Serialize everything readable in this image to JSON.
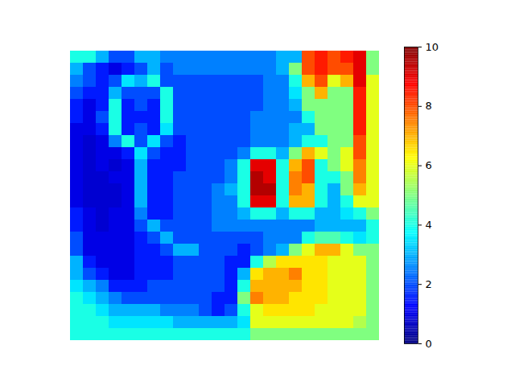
{
  "chart_data": {
    "type": "heatmap",
    "color": "jet",
    "tick_labels": false,
    "colorbar": {
      "range": [
        0,
        10
      ],
      "ticks": [
        0,
        2,
        4,
        6,
        8,
        10
      ]
    },
    "cells": [
      [
        4,
        4,
        3,
        2,
        2,
        3,
        3,
        2.5,
        2.5,
        2.5,
        2.5,
        2.5,
        2.5,
        2.5,
        2.5,
        2.5,
        3,
        3,
        8,
        8.5,
        8,
        8.5,
        9,
        5
      ],
      [
        3,
        2,
        1.5,
        1,
        1.5,
        2,
        3,
        2,
        2.5,
        2.5,
        2.5,
        2.5,
        2.5,
        2.5,
        2.5,
        2.5,
        3,
        5,
        8,
        8.5,
        8,
        8,
        9,
        5
      ],
      [
        2.5,
        2,
        1.5,
        2,
        3.5,
        3,
        4,
        2,
        2,
        2,
        2,
        2,
        2,
        2,
        2,
        2.5,
        2.5,
        4,
        7,
        8,
        6,
        7,
        9,
        6
      ],
      [
        2,
        1.5,
        1.5,
        3,
        2,
        2,
        2,
        4,
        2,
        2,
        2,
        2,
        2,
        2,
        2,
        2.5,
        2.5,
        3.5,
        5,
        7,
        5,
        5,
        8.5,
        6
      ],
      [
        1.5,
        1,
        1.5,
        4,
        1.5,
        2,
        1.5,
        4,
        2,
        2,
        2,
        2,
        2,
        2,
        2,
        2.5,
        2.5,
        3,
        5,
        5,
        5,
        5,
        8.5,
        6
      ],
      [
        1.5,
        1,
        2,
        4,
        1.5,
        1.5,
        1.5,
        4,
        2,
        2,
        2,
        2,
        2,
        2,
        2.5,
        2.5,
        2.5,
        2.5,
        4,
        5,
        5,
        5,
        8.5,
        6
      ],
      [
        1,
        1,
        1.5,
        4,
        1.5,
        2,
        1.5,
        3.5,
        2,
        2,
        2,
        2,
        2,
        2,
        2.5,
        2.5,
        2.5,
        3,
        3,
        5,
        5,
        5,
        8.5,
        6
      ],
      [
        1,
        0.8,
        1,
        2.5,
        4,
        2,
        3.5,
        2,
        1.5,
        2,
        2,
        2,
        2,
        2,
        2.5,
        2.5,
        2.5,
        3,
        4,
        4,
        5,
        5,
        8,
        6
      ],
      [
        1,
        0.8,
        1,
        1,
        1.5,
        3.5,
        2,
        1.5,
        1.5,
        2,
        2,
        2,
        2,
        2.5,
        4,
        4,
        3,
        5,
        7,
        6,
        5,
        6,
        8,
        6
      ],
      [
        1,
        0.8,
        1,
        0.8,
        1,
        3,
        1.5,
        1.5,
        1.5,
        2,
        2,
        2,
        2.5,
        4,
        9,
        9,
        4,
        7,
        8,
        4,
        5,
        6,
        7.5,
        6
      ],
      [
        1,
        0.8,
        0.8,
        1,
        1,
        3,
        1.5,
        1.5,
        2,
        2,
        2,
        2,
        2.5,
        4,
        9.5,
        9,
        4,
        7.5,
        8,
        4,
        4,
        5,
        7.5,
        6
      ],
      [
        1,
        0.8,
        0.8,
        0.8,
        1,
        3,
        1.5,
        1.5,
        2,
        2,
        2,
        2.5,
        3,
        4,
        9.5,
        9.5,
        4,
        7.5,
        7,
        4,
        3,
        5,
        7,
        6
      ],
      [
        1,
        0.8,
        0.8,
        0.8,
        1,
        3,
        1.5,
        1.5,
        2,
        2,
        2,
        2.5,
        2.5,
        4,
        9,
        9,
        4,
        7,
        7,
        4,
        3,
        4,
        6,
        6
      ],
      [
        1.5,
        1,
        0.8,
        1,
        1,
        2.5,
        1.5,
        1.5,
        2,
        2,
        2,
        2.5,
        2.5,
        3,
        4,
        4,
        3,
        4,
        4,
        3,
        3,
        3.5,
        4,
        5
      ],
      [
        1.5,
        1,
        0.8,
        1,
        1,
        2,
        3,
        2,
        2,
        2,
        2,
        2.5,
        2.5,
        2.5,
        2.5,
        2.5,
        2.5,
        2.5,
        2.5,
        3,
        3,
        3,
        3,
        4
      ],
      [
        2,
        1,
        1,
        1,
        1,
        1.5,
        2,
        3,
        2,
        2,
        2,
        2,
        2,
        2,
        2,
        2.5,
        2.5,
        2.5,
        4,
        4.5,
        4.5,
        4,
        3.5,
        4
      ],
      [
        2,
        1,
        1,
        1,
        1,
        1.5,
        1.5,
        2,
        3,
        3,
        2,
        2,
        2,
        1.5,
        2,
        2.5,
        3,
        5,
        6,
        7,
        7,
        6,
        5,
        5
      ],
      [
        3,
        1.5,
        1,
        1,
        1,
        1.5,
        1.5,
        1.5,
        2,
        2,
        2,
        2,
        1.5,
        1.5,
        4,
        5.5,
        6.5,
        6.5,
        6.5,
        6.5,
        6,
        6,
        6,
        5
      ],
      [
        3,
        2,
        1.5,
        1,
        1,
        1.5,
        1.5,
        1.5,
        2,
        2,
        2,
        2,
        1.5,
        3,
        6.5,
        7,
        7,
        7.5,
        6.5,
        6.5,
        6,
        6,
        6,
        5
      ],
      [
        3.5,
        3,
        2.5,
        1.5,
        1.5,
        1.5,
        2,
        2,
        2,
        2,
        2,
        2,
        1.5,
        4,
        7,
        7,
        7,
        7,
        6.5,
        6.5,
        6,
        6,
        6,
        5
      ],
      [
        4,
        3.5,
        3,
        2.5,
        2,
        2,
        2,
        2,
        2,
        2,
        2,
        1.5,
        1.5,
        5,
        7.5,
        7,
        7,
        6.5,
        6.5,
        6.5,
        6,
        6,
        6,
        5
      ],
      [
        4,
        4,
        3.5,
        3,
        3,
        3,
        3,
        2.5,
        2.5,
        2.5,
        2,
        1.5,
        2,
        4,
        6,
        6.5,
        6.5,
        6.5,
        6.5,
        6,
        6,
        6,
        6,
        5
      ],
      [
        4,
        4,
        4,
        3.5,
        3.5,
        3.5,
        3.5,
        3.5,
        3,
        3,
        3,
        3,
        3,
        3.5,
        6,
        6,
        6,
        6,
        6,
        6,
        6,
        6,
        5.5,
        5
      ],
      [
        4,
        4,
        4,
        4,
        4,
        4,
        4,
        4,
        4,
        4,
        4,
        4,
        4,
        4,
        5,
        5,
        5,
        5,
        5,
        5,
        5,
        5,
        5,
        5
      ]
    ]
  }
}
